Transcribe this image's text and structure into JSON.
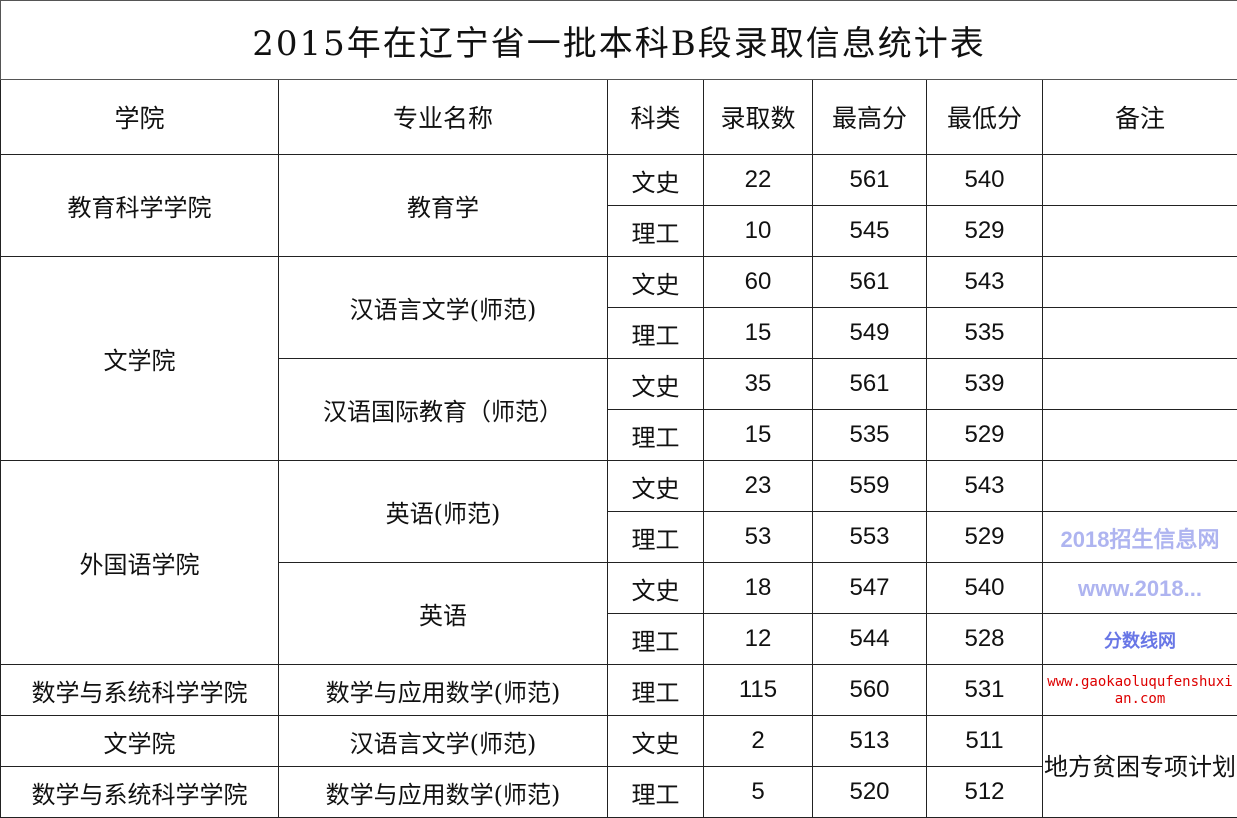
{
  "title": "2015年在辽宁省一批本科B段录取信息统计表",
  "headers": [
    "学院",
    "专业名称",
    "科类",
    "录取数",
    "最高分",
    "最低分",
    "备注"
  ],
  "rows": [
    {
      "college": "教育科学学院",
      "major": "教育学",
      "type": "文史",
      "count": "22",
      "max": "561",
      "min": "540"
    },
    {
      "type": "理工",
      "count": "10",
      "max": "545",
      "min": "529"
    },
    {
      "college": "文学院",
      "major": "汉语言文学(师范)",
      "type": "文史",
      "count": "60",
      "max": "561",
      "min": "543"
    },
    {
      "type": "理工",
      "count": "15",
      "max": "549",
      "min": "535"
    },
    {
      "major": "汉语国际教育（师范）",
      "type": "文史",
      "count": "35",
      "max": "561",
      "min": "539"
    },
    {
      "type": "理工",
      "count": "15",
      "max": "535",
      "min": "529"
    },
    {
      "college": "外国语学院",
      "major": "英语(师范)",
      "type": "文史",
      "count": "23",
      "max": "559",
      "min": "543"
    },
    {
      "type": "理工",
      "count": "53",
      "max": "553",
      "min": "529"
    },
    {
      "major": "英语",
      "type": "文史",
      "count": "18",
      "max": "547",
      "min": "540"
    },
    {
      "type": "理工",
      "count": "12",
      "max": "544",
      "min": "528"
    },
    {
      "college": "数学与系统科学学院",
      "major": "数学与应用数学(师范)",
      "type": "理工",
      "count": "115",
      "max": "560",
      "min": "531"
    },
    {
      "college": "文学院",
      "major": "汉语言文学(师范)",
      "type": "文史",
      "count": "2",
      "max": "513",
      "min": "511",
      "note": "地方贫困专项计划"
    },
    {
      "college": "数学与系统科学学院",
      "major": "数学与应用数学(师范)",
      "type": "理工",
      "count": "5",
      "max": "520",
      "min": "512"
    }
  ],
  "watermarks": [
    "2018招生信息网",
    "www.2018...",
    "分数线网",
    "www.gaokaoluqufenshuxian.com"
  ]
}
